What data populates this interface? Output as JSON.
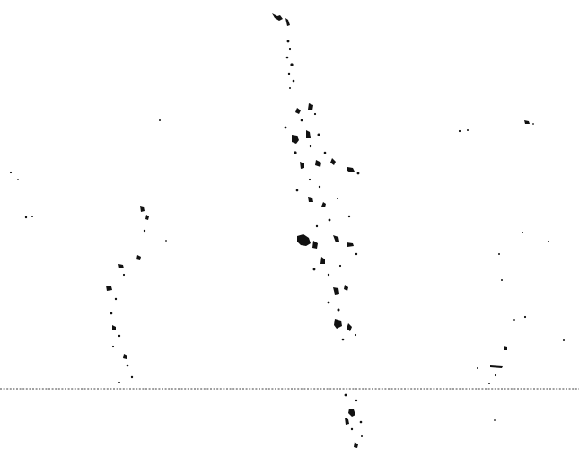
{
  "image": {
    "background_color": "#ffffff",
    "ink_color": "#111111",
    "description_kind": "sparse black speckle scan with horizontal dotted baseline"
  }
}
